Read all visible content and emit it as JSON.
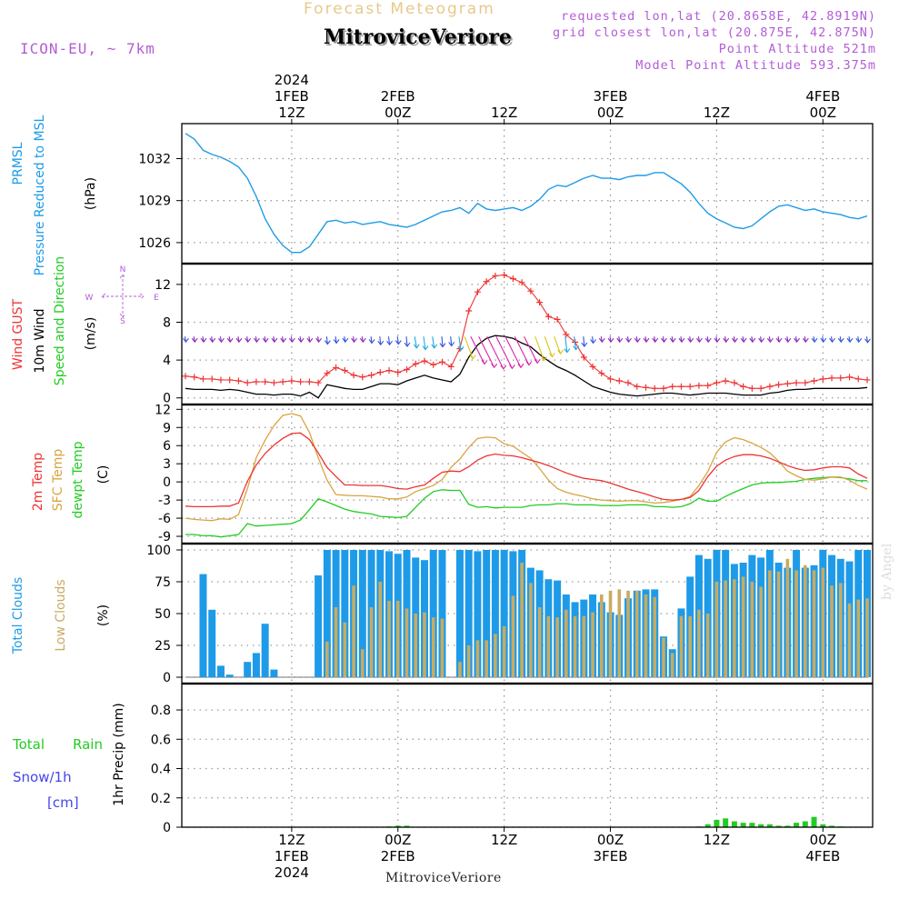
{
  "header": {
    "top_title": "Forecast Meteogram",
    "station": "MitroviceVeriore",
    "model": "ICON-EU, ~ 7km",
    "requested": "requested lon,lat (20.8658E, 42.8919N)",
    "grid_closest": "grid closest lon,lat (20.875E, 42.875N)",
    "point_altitude": "Point Altitude 521m",
    "model_altitude": "Model Point Altitude 593.375m"
  },
  "footer": {
    "station": "MitroviceVeriore",
    "watermark": "by Angel"
  },
  "colors": {
    "pressure": "#1e9be8",
    "gust": "#ee3333",
    "wind": "#000000",
    "t2m": "#ee3333",
    "sfc": "#d9a441",
    "dewpt": "#22cc22",
    "total_cloud": "#1e9be8",
    "low_cloud": "#c8ab62",
    "rain": "#22cc22",
    "snow": "#4444ee",
    "purple": "#b45cd6"
  },
  "time_axis": {
    "top_ticks": [
      {
        "hour": 12,
        "lines": [
          "2024",
          "1FEB",
          "12Z"
        ]
      },
      {
        "hour": 24,
        "lines": [
          "2FEB",
          "00Z"
        ]
      },
      {
        "hour": 36,
        "lines": [
          "12Z"
        ]
      },
      {
        "hour": 48,
        "lines": [
          "3FEB",
          "00Z"
        ]
      },
      {
        "hour": 60,
        "lines": [
          "12Z"
        ]
      },
      {
        "hour": 72,
        "lines": [
          "4FEB",
          "00Z"
        ]
      }
    ],
    "bottom_ticks": [
      {
        "hour": 12,
        "lines": [
          "12Z",
          "1FEB",
          "2024"
        ]
      },
      {
        "hour": 24,
        "lines": [
          "00Z",
          "2FEB"
        ]
      },
      {
        "hour": 36,
        "lines": [
          "12Z"
        ]
      },
      {
        "hour": 48,
        "lines": [
          "00Z",
          "3FEB"
        ]
      },
      {
        "hour": 60,
        "lines": [
          "12Z"
        ]
      },
      {
        "hour": 72,
        "lines": [
          "00Z",
          "4FEB"
        ]
      }
    ]
  },
  "panel_labels": {
    "pressure": [
      "PRMSL",
      "Pressure Reduced to MSL"
    ],
    "pressure_unit": "(hPa)",
    "wind": [
      "Wind GUST",
      "10m Wind",
      "Speed and Direction"
    ],
    "wind_unit": "(m/s)",
    "compass": {
      "n": "N",
      "s": "S",
      "w": "W",
      "e": "E"
    },
    "temp": [
      "2m Temp",
      "SFC Temp",
      "dewpt Temp"
    ],
    "temp_unit": "(C)",
    "cloud": [
      "Total Clouds",
      "Low Clouds"
    ],
    "cloud_unit": "(%)",
    "precip_left": [
      "Total",
      "Rain",
      "Snow/1h",
      "[cm]"
    ],
    "precip_unit": "1hr Precip (mm)"
  },
  "chart_data": {
    "type": "meteogram",
    "time_start_hour": 0,
    "time_end_hour": 77,
    "pressure": {
      "name": "PRMSL",
      "unit": "hPa",
      "ylim": [
        1024.5,
        1034.5
      ],
      "yticks": [
        1026,
        1029,
        1032
      ],
      "x": [
        0,
        1,
        2,
        3,
        4,
        5,
        6,
        7,
        8,
        9,
        10,
        11,
        12,
        13,
        14,
        15,
        16,
        17,
        18,
        19,
        20,
        21,
        22,
        23,
        24,
        25,
        26,
        27,
        28,
        29,
        30,
        31,
        32,
        33,
        34,
        35,
        36,
        37,
        38,
        39,
        40,
        41,
        42,
        43,
        44,
        45,
        46,
        47,
        48,
        49,
        50,
        51,
        52,
        53,
        54,
        55,
        56,
        57,
        58,
        59,
        60,
        61,
        62,
        63,
        64,
        65,
        66,
        67,
        68,
        69,
        70,
        71,
        72,
        73,
        74,
        75,
        76,
        77
      ],
      "values": [
        1033.8,
        1033.4,
        1032.6,
        1032.3,
        1032.1,
        1031.8,
        1031.4,
        1030.6,
        1029.3,
        1027.7,
        1026.6,
        1025.8,
        1025.3,
        1025.3,
        1025.7,
        1026.6,
        1027.5,
        1027.6,
        1027.4,
        1027.5,
        1027.3,
        1027.4,
        1027.5,
        1027.3,
        1027.2,
        1027.1,
        1027.3,
        1027.6,
        1027.9,
        1028.2,
        1028.3,
        1028.5,
        1028.1,
        1028.8,
        1028.4,
        1028.3,
        1028.4,
        1028.5,
        1028.3,
        1028.6,
        1029.1,
        1029.8,
        1030.1,
        1030.0,
        1030.3,
        1030.6,
        1030.8,
        1030.6,
        1030.6,
        1030.5,
        1030.7,
        1030.8,
        1030.8,
        1031.0,
        1031.0,
        1030.6,
        1030.2,
        1029.6,
        1028.8,
        1028.1,
        1027.7,
        1027.4,
        1027.1,
        1027.0,
        1027.2,
        1027.7,
        1028.2,
        1028.6,
        1028.7,
        1028.5,
        1028.3,
        1028.4,
        1028.2,
        1028.1,
        1028.0,
        1027.8,
        1027.7,
        1027.9
      ]
    },
    "wind": {
      "unit": "m/s",
      "ylim": [
        -0.7,
        14.2
      ],
      "yticks": [
        0,
        4,
        8,
        12
      ],
      "gust": [
        2.3,
        2.2,
        2.0,
        2.0,
        1.9,
        1.9,
        1.8,
        1.6,
        1.7,
        1.7,
        1.6,
        1.7,
        1.8,
        1.7,
        1.7,
        1.6,
        2.6,
        3.2,
        2.9,
        2.4,
        2.2,
        2.4,
        2.7,
        2.9,
        2.7,
        3.0,
        3.6,
        3.9,
        3.5,
        3.8,
        3.3,
        5.2,
        9.2,
        11.2,
        12.3,
        12.9,
        13.0,
        12.6,
        12.2,
        11.3,
        10.1,
        8.6,
        8.3,
        6.7,
        5.9,
        4.3,
        3.3,
        2.6,
        2.0,
        1.8,
        1.6,
        1.2,
        1.1,
        1.0,
        1.0,
        1.2,
        1.2,
        1.2,
        1.3,
        1.3,
        1.6,
        1.8,
        1.6,
        1.2,
        1.0,
        1.0,
        1.2,
        1.4,
        1.5,
        1.6,
        1.6,
        1.8,
        2.0,
        2.1,
        2.1,
        2.2,
        2.0,
        1.9
      ],
      "speed": [
        1.0,
        0.9,
        0.9,
        0.9,
        0.8,
        0.9,
        0.8,
        0.6,
        0.4,
        0.4,
        0.3,
        0.4,
        0.4,
        0.2,
        0.6,
        0.0,
        1.4,
        1.2,
        1.0,
        0.9,
        0.9,
        1.2,
        1.5,
        1.5,
        1.4,
        1.8,
        2.1,
        2.4,
        2.1,
        1.9,
        1.7,
        2.5,
        4.3,
        5.6,
        6.3,
        6.6,
        6.5,
        6.3,
        5.8,
        5.4,
        4.6,
        3.9,
        3.3,
        2.9,
        2.4,
        1.8,
        1.2,
        0.9,
        0.6,
        0.4,
        0.3,
        0.2,
        0.3,
        0.4,
        0.5,
        0.5,
        0.4,
        0.3,
        0.4,
        0.5,
        0.5,
        0.5,
        0.4,
        0.3,
        0.3,
        0.3,
        0.5,
        0.6,
        0.8,
        0.9,
        0.9,
        1.0,
        1.0,
        1.0,
        1.0,
        1.0,
        1.0,
        1.1
      ]
    },
    "temperature": {
      "unit": "C",
      "ylim": [
        -10.2,
        12.8
      ],
      "yticks": [
        -9,
        -6,
        -3,
        0,
        3,
        6,
        9,
        12
      ],
      "t2m": [
        -4.0,
        -4.1,
        -4.1,
        -4.1,
        -4.0,
        -4.0,
        -3.5,
        0.1,
        2.8,
        4.7,
        6.1,
        7.2,
        8.0,
        8.1,
        7.0,
        4.8,
        2.4,
        0.9,
        -0.5,
        -0.5,
        -0.6,
        -0.6,
        -0.6,
        -0.8,
        -1.1,
        -1.2,
        -0.8,
        -0.5,
        0.6,
        1.6,
        1.8,
        1.7,
        2.5,
        3.6,
        4.3,
        4.6,
        4.4,
        4.3,
        4.0,
        3.6,
        3.2,
        2.7,
        2.1,
        1.5,
        1.0,
        0.6,
        0.4,
        0.2,
        -0.2,
        -0.7,
        -1.2,
        -1.6,
        -2.0,
        -2.5,
        -2.9,
        -3.0,
        -2.9,
        -2.6,
        -1.4,
        0.9,
        2.6,
        3.6,
        4.2,
        4.5,
        4.5,
        4.3,
        3.9,
        3.3,
        2.7,
        2.2,
        1.9,
        2.0,
        2.3,
        2.5,
        2.5,
        2.3,
        1.3,
        0.6
      ],
      "sfc": [
        -6.0,
        -6.2,
        -6.3,
        -6.4,
        -6.1,
        -6.2,
        -5.4,
        -1.1,
        4.0,
        6.9,
        9.3,
        11.0,
        11.3,
        10.9,
        8.2,
        4.0,
        0.3,
        -2.1,
        -2.2,
        -2.3,
        -2.3,
        -2.4,
        -2.5,
        -2.8,
        -2.8,
        -2.5,
        -1.6,
        -1.1,
        -0.6,
        0.4,
        2.4,
        3.8,
        5.7,
        7.2,
        7.4,
        7.3,
        6.3,
        5.9,
        4.9,
        3.9,
        2.2,
        0.3,
        -1.1,
        -1.7,
        -2.1,
        -2.4,
        -2.8,
        -3.0,
        -3.1,
        -3.2,
        -3.1,
        -3.1,
        -3.3,
        -3.5,
        -3.4,
        -3.2,
        -2.9,
        -2.4,
        -0.6,
        1.7,
        4.9,
        6.6,
        7.3,
        7.0,
        6.4,
        5.7,
        4.8,
        3.4,
        1.8,
        1.0,
        0.4,
        0.3,
        0.5,
        0.8,
        0.8,
        0.3,
        -0.6,
        -1.2
      ],
      "dewpt": [
        -8.7,
        -8.7,
        -8.9,
        -8.9,
        -9.1,
        -8.9,
        -8.7,
        -6.9,
        -7.3,
        -7.2,
        -7.1,
        -7.0,
        -6.9,
        -6.3,
        -4.6,
        -2.8,
        -3.3,
        -3.9,
        -4.5,
        -4.9,
        -5.1,
        -5.3,
        -5.7,
        -5.8,
        -5.9,
        -5.7,
        -4.2,
        -2.7,
        -1.6,
        -1.3,
        -1.4,
        -1.4,
        -3.7,
        -4.2,
        -4.1,
        -4.3,
        -4.2,
        -4.2,
        -4.2,
        -3.9,
        -3.8,
        -3.8,
        -3.6,
        -3.6,
        -3.8,
        -3.8,
        -3.8,
        -3.9,
        -3.9,
        -3.9,
        -3.8,
        -3.8,
        -3.8,
        -4.1,
        -4.1,
        -4.2,
        -4.1,
        -3.6,
        -2.7,
        -3.2,
        -3.2,
        -2.4,
        -1.7,
        -1.1,
        -0.5,
        -0.2,
        -0.1,
        -0.1,
        0.0,
        0.1,
        0.4,
        0.6,
        0.7,
        0.8,
        0.7,
        0.5,
        0.2,
        0.2
      ]
    },
    "clouds": {
      "unit": "%",
      "ylim": [
        -5,
        105
      ],
      "yticks": [
        0,
        25,
        50,
        75,
        100
      ],
      "total": [
        0,
        0,
        81,
        53,
        9,
        2,
        0,
        12,
        19,
        42,
        6,
        0,
        0,
        0,
        0,
        80,
        100,
        100,
        100,
        100,
        100,
        100,
        100,
        99,
        97,
        100,
        94,
        92,
        100,
        100,
        0,
        100,
        100,
        99,
        100,
        100,
        100,
        99,
        100,
        86,
        84,
        77,
        76,
        65,
        59,
        61,
        65,
        59,
        51,
        49,
        62,
        68,
        69,
        69,
        32,
        22,
        54,
        79,
        96,
        93,
        100,
        100,
        89,
        90,
        96,
        94,
        100,
        90,
        86,
        100,
        86,
        88,
        100,
        96,
        93,
        91,
        100,
        100
      ],
      "low": [
        0,
        0,
        0,
        0,
        0,
        0,
        0,
        0,
        0,
        0,
        0,
        0,
        0,
        0,
        0,
        0,
        28,
        55,
        43,
        72,
        22,
        55,
        75,
        60,
        60,
        54,
        50,
        51,
        47,
        46,
        0,
        12,
        25,
        29,
        29,
        34,
        40,
        64,
        90,
        74,
        55,
        48,
        47,
        53,
        48,
        48,
        51,
        65,
        68,
        69,
        68,
        68,
        65,
        63,
        31,
        19,
        48,
        48,
        53,
        50,
        75,
        76,
        77,
        79,
        75,
        71,
        84,
        83,
        93,
        84,
        88,
        84,
        86,
        72,
        74,
        58,
        61,
        62
      ]
    },
    "precip": {
      "unit": "mm",
      "ylim": [
        0,
        0.98
      ],
      "yticks": [
        0.0,
        0.2,
        0.4,
        0.6,
        0.8
      ],
      "rain": [
        0,
        0,
        0,
        0,
        0,
        0,
        0,
        0,
        0,
        0,
        0,
        0,
        0,
        0,
        0,
        0,
        0,
        0,
        0,
        0,
        0,
        0,
        0,
        0.005,
        0.01,
        0.01,
        0,
        0,
        0,
        0,
        0,
        0,
        0,
        0,
        0,
        0,
        0,
        0,
        0,
        0,
        0,
        0,
        0,
        0,
        0,
        0,
        0,
        0,
        0,
        0,
        0,
        0,
        0,
        0,
        0,
        0,
        0,
        0,
        0.005,
        0.02,
        0.05,
        0.06,
        0.04,
        0.03,
        0.03,
        0.02,
        0.02,
        0.01,
        0.01,
        0.03,
        0.04,
        0.07,
        0.02,
        0.01,
        0.005,
        0,
        0,
        0
      ],
      "snow": [
        0,
        0,
        0,
        0,
        0,
        0,
        0,
        0,
        0,
        0,
        0,
        0,
        0,
        0,
        0,
        0,
        0,
        0,
        0,
        0,
        0,
        0,
        0,
        0,
        0,
        0,
        0,
        0,
        0,
        0,
        0,
        0,
        0,
        0,
        0,
        0,
        0,
        0,
        0,
        0,
        0,
        0,
        0,
        0,
        0,
        0,
        0,
        0,
        0,
        0,
        0,
        0,
        0,
        0,
        0,
        0,
        0,
        0,
        0,
        0,
        0,
        0,
        0,
        0,
        0,
        0,
        0,
        0,
        0,
        0,
        0,
        0,
        0,
        0,
        0,
        0,
        0,
        0
      ]
    }
  }
}
